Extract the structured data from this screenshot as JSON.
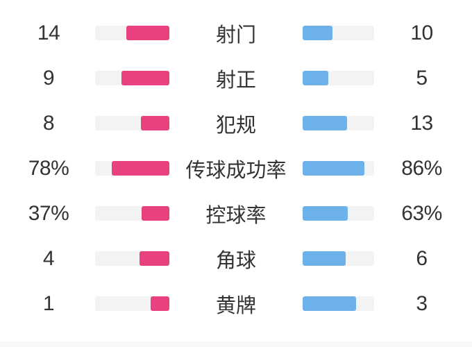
{
  "colors": {
    "home": "#e8417f",
    "away": "#6cb1ea",
    "track": "#f3f3f4",
    "text": "#333333",
    "strip": "#f7f7f8"
  },
  "stats": {
    "rows": [
      {
        "label": "射门",
        "home": "14",
        "away": "10"
      },
      {
        "label": "射正",
        "home": "9",
        "away": "5"
      },
      {
        "label": "犯规",
        "home": "8",
        "away": "13"
      },
      {
        "label": "传球成功率",
        "home": "78%",
        "away": "86%"
      },
      {
        "label": "控球率",
        "home": "37%",
        "away": "63%"
      },
      {
        "label": "角球",
        "home": "4",
        "away": "6"
      },
      {
        "label": "黄牌",
        "home": "1",
        "away": "3"
      }
    ]
  },
  "chart_data": {
    "type": "bar",
    "orientation": "horizontal-mirrored",
    "categories": [
      "射门",
      "射正",
      "犯规",
      "传球成功率",
      "控球率",
      "角球",
      "黄牌"
    ],
    "series": [
      {
        "name": "home-team",
        "color": "#e8417f",
        "values": [
          14,
          9,
          8,
          78,
          37,
          4,
          1
        ],
        "display": [
          "14",
          "9",
          "8",
          "78%",
          "37%",
          "4",
          "1"
        ]
      },
      {
        "name": "away-team",
        "color": "#6cb1ea",
        "values": [
          10,
          5,
          13,
          86,
          63,
          6,
          3
        ],
        "display": [
          "10",
          "5",
          "13",
          "86%",
          "63%",
          "6",
          "3"
        ]
      }
    ],
    "notes": "count rows filled as value/(home+away); percent rows filled as literal percent; fills anchored toward center labels",
    "legend": "none",
    "grid": "off"
  }
}
